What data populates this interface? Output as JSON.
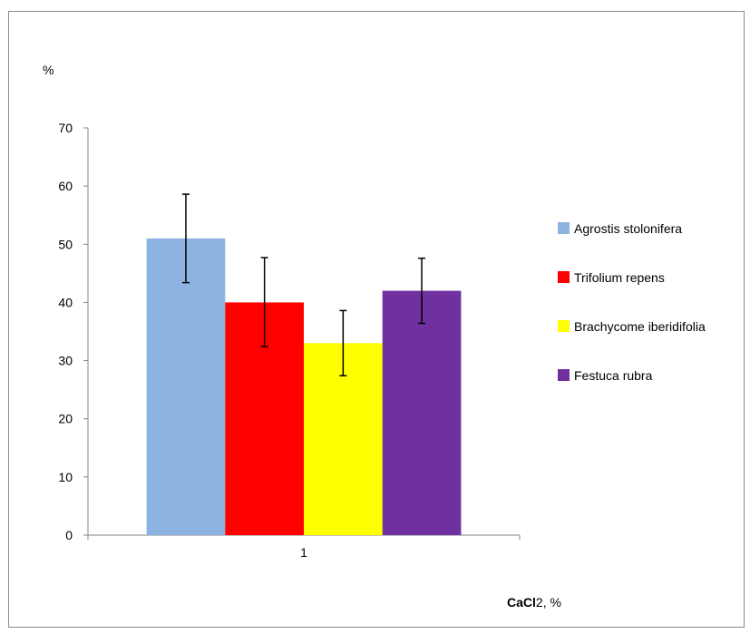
{
  "chart_data": {
    "type": "bar",
    "title": "",
    "ylabel": "%",
    "xlabel_main": "CaCl",
    "xlabel_sub": "2",
    "xlabel_suffix": ", %",
    "categories": [
      "1"
    ],
    "ylim": [
      0,
      70
    ],
    "yticks": [
      0,
      10,
      20,
      30,
      40,
      50,
      60,
      70
    ],
    "ytick_labels": [
      "0",
      "10",
      "20",
      "30",
      "40",
      "50",
      "60",
      "70"
    ],
    "grid": false,
    "legend_position": "right",
    "series": [
      {
        "name": "Agrostis stolonifera",
        "color": "#8db3e2",
        "values": [
          51
        ],
        "error_low": [
          43.4
        ],
        "error_high": [
          58.6
        ]
      },
      {
        "name": "Trifolium repens",
        "color": "#ff0000",
        "values": [
          40
        ],
        "error_low": [
          32.4
        ],
        "error_high": [
          47.7
        ]
      },
      {
        "name": "Brachycome iberidifolia",
        "color": "#ffff00",
        "values": [
          33
        ],
        "error_low": [
          27.4
        ],
        "error_high": [
          38.6
        ]
      },
      {
        "name": "Festuca rubra",
        "color": "#7030a0",
        "values": [
          42
        ],
        "error_low": [
          36.4
        ],
        "error_high": [
          47.6
        ]
      }
    ]
  }
}
